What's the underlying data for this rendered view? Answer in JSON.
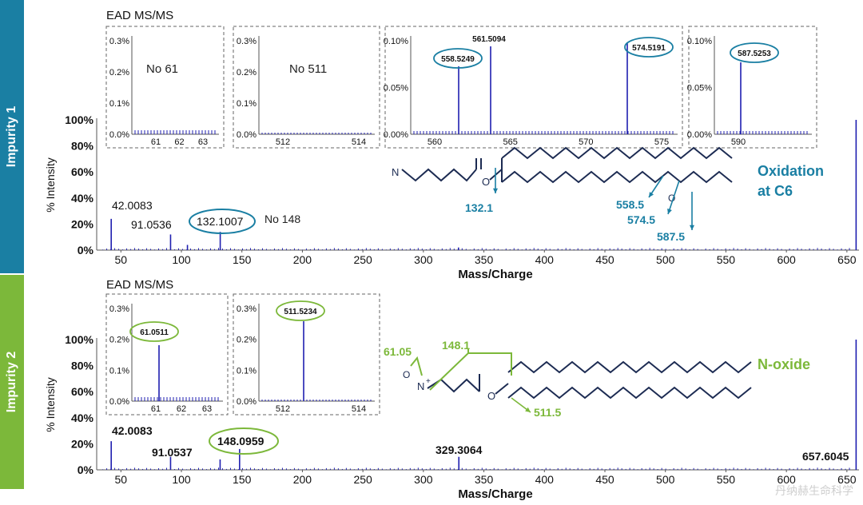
{
  "colors": {
    "impurity1": "#1a7fa3",
    "impurity2": "#7cb83a",
    "spectrum": "#1f1fb0",
    "structure": "#1c2b52"
  },
  "sidebar": {
    "impurity1": "Impurity 1",
    "impurity2": "Impurity 2"
  },
  "watermark": "丹纳赫生命科学",
  "chart_data": [
    {
      "type": "bar",
      "title": "EAD MS/MS",
      "xlabel": "Mass/Charge",
      "ylabel": "% Intensity",
      "xlim": [
        30,
        660
      ],
      "ylim": [
        0,
        100
      ],
      "xticks": [
        50,
        100,
        150,
        200,
        250,
        300,
        350,
        400,
        450,
        500,
        550,
        600,
        650
      ],
      "yticks": [
        "0%",
        "20%",
        "40%",
        "60%",
        "80%",
        "100%"
      ],
      "peaks": [
        [
          42.0083,
          24
        ],
        [
          91.0536,
          12
        ],
        [
          132.1007,
          14
        ],
        [
          105,
          4
        ],
        [
          329,
          2
        ],
        [
          657.6,
          100
        ]
      ],
      "peak_labels": [
        "42.0083",
        "91.0536",
        "132.1007"
      ],
      "annotations": {
        "circled": "132.1007",
        "missing": "No 148",
        "modification": "Oxidation at C6"
      },
      "fragments": [
        "132.1",
        "558.5",
        "574.5",
        "587.5"
      ],
      "insets": [
        {
          "yticks": [
            "0.3%",
            "0.2%",
            "0.1%",
            "0.0%"
          ],
          "xticks": [
            "61",
            "62",
            "63"
          ],
          "note": "No 61"
        },
        {
          "yticks": [
            "0.3%",
            "0.2%",
            "0.1%",
            "0.0%"
          ],
          "xticks": [
            "512",
            "514"
          ],
          "note": "No 511"
        },
        {
          "yticks": [
            "0.10%",
            "0.05%",
            "0.00%"
          ],
          "xticks": [
            "560",
            "565",
            "570",
            "575"
          ],
          "peaks": [
            "558.5249",
            "561.5094",
            "574.5191"
          ]
        },
        {
          "yticks": [
            "0.10%",
            "0.05%",
            "0.00%"
          ],
          "xticks": [
            "590"
          ],
          "peaks": [
            "587.5253"
          ]
        }
      ]
    },
    {
      "type": "bar",
      "title": "EAD MS/MS",
      "xlabel": "Mass/Charge",
      "ylabel": "% Intensity",
      "xlim": [
        30,
        660
      ],
      "ylim": [
        0,
        100
      ],
      "xticks": [
        50,
        100,
        150,
        200,
        250,
        300,
        350,
        400,
        450,
        500,
        550,
        600,
        650
      ],
      "yticks": [
        "0%",
        "20%",
        "40%",
        "60%",
        "80%",
        "100%"
      ],
      "peaks": [
        [
          42.0083,
          22
        ],
        [
          91.0537,
          10
        ],
        [
          132,
          8
        ],
        [
          148.0959,
          16
        ],
        [
          329.3064,
          10
        ],
        [
          657.6045,
          100
        ]
      ],
      "peak_labels": [
        "42.0083",
        "91.0537",
        "148.0959",
        "329.3064",
        "657.6045"
      ],
      "annotations": {
        "circled": "148.0959",
        "modification": "N-oxide"
      },
      "fragments": [
        "61.05",
        "148.1",
        "511.5"
      ],
      "insets": [
        {
          "yticks": [
            "0.3%",
            "0.2%",
            "0.1%",
            "0.0%"
          ],
          "xticks": [
            "61",
            "62",
            "63"
          ],
          "peaks": [
            "61.0511"
          ]
        },
        {
          "yticks": [
            "0.3%",
            "0.2%",
            "0.1%",
            "0.0%"
          ],
          "xticks": [
            "512",
            "514"
          ],
          "peaks": [
            "511.5234"
          ]
        }
      ]
    }
  ]
}
